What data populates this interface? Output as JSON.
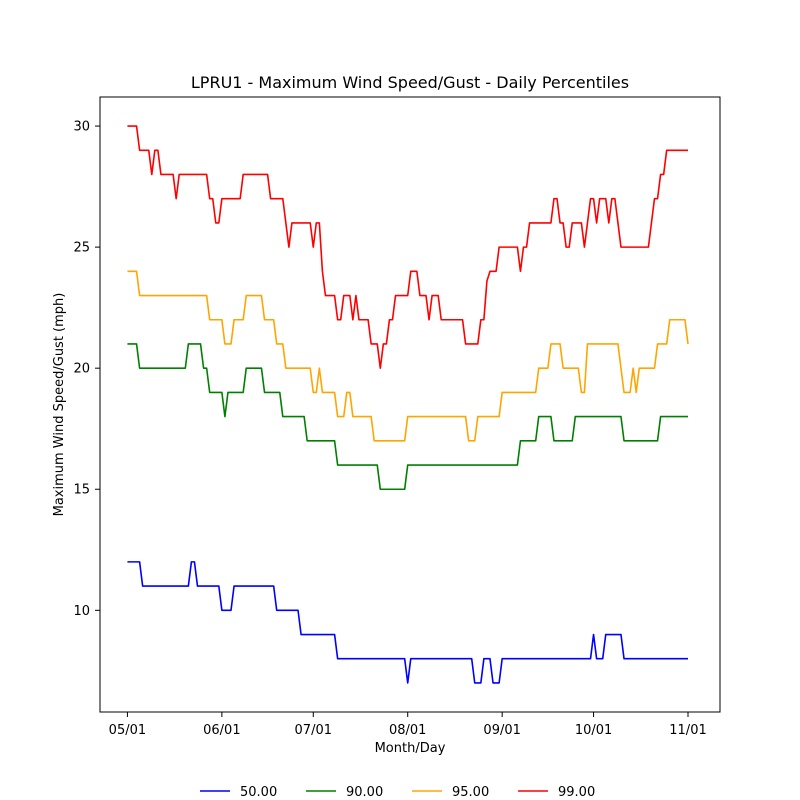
{
  "chart_data": {
    "type": "line",
    "title": "LPRU1 - Maximum Wind Speed/Gust - Daily Percentiles",
    "xlabel": "Month/Day",
    "ylabel": "Maximum Wind Speed/Gust (mph)",
    "x_ticks": [
      {
        "day": 0,
        "label": "05/01"
      },
      {
        "day": 31,
        "label": "06/01"
      },
      {
        "day": 61,
        "label": "07/01"
      },
      {
        "day": 92,
        "label": "08/01"
      },
      {
        "day": 123,
        "label": "09/01"
      },
      {
        "day": 153,
        "label": "10/01"
      },
      {
        "day": 184,
        "label": "11/01"
      }
    ],
    "y_ticks": [
      10,
      15,
      20,
      25,
      30
    ],
    "xlim": [
      -9,
      194.5
    ],
    "ylim": [
      5.8,
      31.2
    ],
    "grid": false,
    "legend_position": "bottom",
    "series": [
      {
        "name": "50.00",
        "color": "#0000ff",
        "points": [
          [
            0,
            12
          ],
          [
            4,
            12
          ],
          [
            5,
            11
          ],
          [
            20,
            11
          ],
          [
            21,
            12
          ],
          [
            22,
            12
          ],
          [
            23,
            11
          ],
          [
            30,
            11
          ],
          [
            31,
            10
          ],
          [
            34,
            10
          ],
          [
            35,
            11
          ],
          [
            48,
            11
          ],
          [
            49,
            10
          ],
          [
            56,
            10
          ],
          [
            57,
            9
          ],
          [
            68,
            9
          ],
          [
            69,
            8
          ],
          [
            91,
            8
          ],
          [
            92,
            7
          ],
          [
            93,
            8
          ],
          [
            113,
            8
          ],
          [
            114,
            7
          ],
          [
            116,
            7
          ],
          [
            117,
            8
          ],
          [
            119,
            8
          ],
          [
            120,
            7
          ],
          [
            122,
            7
          ],
          [
            123,
            8
          ],
          [
            152,
            8
          ],
          [
            153,
            9
          ],
          [
            154,
            8
          ],
          [
            156,
            8
          ],
          [
            157,
            9
          ],
          [
            162,
            9
          ],
          [
            163,
            8
          ],
          [
            184,
            8
          ]
        ]
      },
      {
        "name": "90.00",
        "color": "#008000",
        "points": [
          [
            0,
            21
          ],
          [
            3,
            21
          ],
          [
            4,
            20
          ],
          [
            19,
            20
          ],
          [
            20,
            21
          ],
          [
            24,
            21
          ],
          [
            25,
            20
          ],
          [
            26,
            20
          ],
          [
            27,
            19
          ],
          [
            31,
            19
          ],
          [
            32,
            18
          ],
          [
            33,
            19
          ],
          [
            38,
            19
          ],
          [
            39,
            20
          ],
          [
            44,
            20
          ],
          [
            45,
            19
          ],
          [
            50,
            19
          ],
          [
            51,
            18
          ],
          [
            58,
            18
          ],
          [
            59,
            17
          ],
          [
            68,
            17
          ],
          [
            69,
            16
          ],
          [
            82,
            16
          ],
          [
            83,
            15
          ],
          [
            91,
            15
          ],
          [
            92,
            16
          ],
          [
            128,
            16
          ],
          [
            129,
            17
          ],
          [
            134,
            17
          ],
          [
            135,
            18
          ],
          [
            139,
            18
          ],
          [
            140,
            17
          ],
          [
            146,
            17
          ],
          [
            147,
            18
          ],
          [
            162,
            18
          ],
          [
            163,
            17
          ],
          [
            174,
            17
          ],
          [
            175,
            18
          ],
          [
            184,
            18
          ]
        ]
      },
      {
        "name": "95.00",
        "color": "#ffa500",
        "points": [
          [
            0,
            24
          ],
          [
            3,
            24
          ],
          [
            4,
            23
          ],
          [
            26,
            23
          ],
          [
            27,
            22
          ],
          [
            31,
            22
          ],
          [
            32,
            21
          ],
          [
            34,
            21
          ],
          [
            35,
            22
          ],
          [
            38,
            22
          ],
          [
            39,
            23
          ],
          [
            44,
            23
          ],
          [
            45,
            22
          ],
          [
            48,
            22
          ],
          [
            49,
            21
          ],
          [
            51,
            21
          ],
          [
            52,
            20
          ],
          [
            60,
            20
          ],
          [
            61,
            19
          ],
          [
            62,
            19
          ],
          [
            63,
            20
          ],
          [
            64,
            19
          ],
          [
            68,
            19
          ],
          [
            69,
            18
          ],
          [
            71,
            18
          ],
          [
            72,
            19
          ],
          [
            73,
            19
          ],
          [
            74,
            18
          ],
          [
            80,
            18
          ],
          [
            81,
            17
          ],
          [
            91,
            17
          ],
          [
            92,
            18
          ],
          [
            111,
            18
          ],
          [
            112,
            17
          ],
          [
            114,
            17
          ],
          [
            115,
            18
          ],
          [
            122,
            18
          ],
          [
            123,
            19
          ],
          [
            134,
            19
          ],
          [
            135,
            20
          ],
          [
            138,
            20
          ],
          [
            139,
            21
          ],
          [
            142,
            21
          ],
          [
            143,
            20
          ],
          [
            148,
            20
          ],
          [
            149,
            19
          ],
          [
            150,
            19
          ],
          [
            151,
            21
          ],
          [
            161,
            21
          ],
          [
            162,
            20
          ],
          [
            163,
            19
          ],
          [
            165,
            19
          ],
          [
            166,
            20
          ],
          [
            167,
            19
          ],
          [
            168,
            20
          ],
          [
            173,
            20
          ],
          [
            174,
            21
          ],
          [
            177,
            21
          ],
          [
            178,
            22
          ],
          [
            183,
            22
          ],
          [
            184,
            21
          ]
        ]
      },
      {
        "name": "99.00",
        "color": "#ff0000",
        "points": [
          [
            0,
            30
          ],
          [
            3,
            30
          ],
          [
            4,
            29
          ],
          [
            7,
            29
          ],
          [
            8,
            28
          ],
          [
            9,
            29
          ],
          [
            10,
            29
          ],
          [
            11,
            28
          ],
          [
            15,
            28
          ],
          [
            16,
            27
          ],
          [
            17,
            28
          ],
          [
            26,
            28
          ],
          [
            27,
            27
          ],
          [
            28,
            27
          ],
          [
            29,
            26
          ],
          [
            30,
            26
          ],
          [
            31,
            27
          ],
          [
            37,
            27
          ],
          [
            38,
            28
          ],
          [
            46,
            28
          ],
          [
            47,
            27
          ],
          [
            51,
            27
          ],
          [
            53,
            25
          ],
          [
            54,
            26
          ],
          [
            60,
            26
          ],
          [
            61,
            25
          ],
          [
            62,
            26
          ],
          [
            63,
            26
          ],
          [
            64,
            24
          ],
          [
            65,
            23
          ],
          [
            68,
            23
          ],
          [
            69,
            22
          ],
          [
            70,
            22
          ],
          [
            71,
            23
          ],
          [
            73,
            23
          ],
          [
            74,
            22
          ],
          [
            75,
            23
          ],
          [
            76,
            22
          ],
          [
            79,
            22
          ],
          [
            80,
            21
          ],
          [
            82,
            21
          ],
          [
            83,
            20
          ],
          [
            84,
            21
          ],
          [
            85,
            21
          ],
          [
            86,
            22
          ],
          [
            87,
            22
          ],
          [
            88,
            23
          ],
          [
            92,
            23
          ],
          [
            93,
            24
          ],
          [
            95,
            24
          ],
          [
            96,
            23
          ],
          [
            98,
            23
          ],
          [
            99,
            22
          ],
          [
            100,
            23
          ],
          [
            102,
            23
          ],
          [
            103,
            22
          ],
          [
            110,
            22
          ],
          [
            111,
            21
          ],
          [
            115,
            21
          ],
          [
            116,
            22
          ],
          [
            117,
            22
          ],
          [
            118,
            23.6
          ],
          [
            119,
            24
          ],
          [
            121,
            24
          ],
          [
            122,
            25
          ],
          [
            128,
            25
          ],
          [
            129,
            24
          ],
          [
            130,
            25
          ],
          [
            131,
            25
          ],
          [
            132,
            26
          ],
          [
            139,
            26
          ],
          [
            140,
            27
          ],
          [
            141,
            27
          ],
          [
            142,
            26
          ],
          [
            143,
            26
          ],
          [
            144,
            25
          ],
          [
            145,
            25
          ],
          [
            146,
            26
          ],
          [
            149,
            26
          ],
          [
            150,
            25
          ],
          [
            151,
            26
          ],
          [
            152,
            27
          ],
          [
            153,
            27
          ],
          [
            154,
            26
          ],
          [
            155,
            27
          ],
          [
            157,
            27
          ],
          [
            158,
            26
          ],
          [
            159,
            27
          ],
          [
            160,
            27
          ],
          [
            161,
            26
          ],
          [
            162,
            25
          ],
          [
            171,
            25
          ],
          [
            172,
            26
          ],
          [
            173,
            27
          ],
          [
            174,
            27
          ],
          [
            175,
            28
          ],
          [
            176,
            28
          ],
          [
            177,
            29
          ],
          [
            184,
            29
          ]
        ]
      }
    ]
  }
}
